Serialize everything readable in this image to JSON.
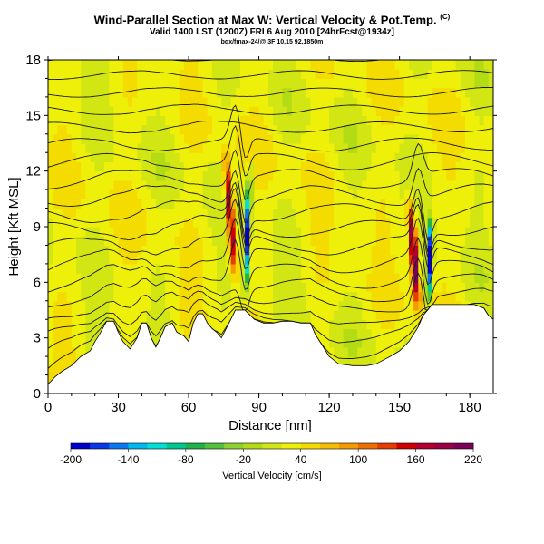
{
  "header": {
    "title": "Wind-Parallel Section at Max W: Vertical Velocity & Pot.Temp.",
    "copyright": "(C)",
    "subtitle": "Valid 1400 LST (1200Z) FRI 6 Aug 2010 [24hrFcst@1934z]",
    "source_line": "bqx/fmax-24/@ 3F 10,15 92,1850m"
  },
  "chart_data": {
    "type": "heatmap",
    "title": "Wind-Parallel Section at Max W: Vertical Velocity & Pot.Temp.",
    "xlabel": "Distance [nm]",
    "ylabel": "Height [Kft MSL]",
    "xlim": [
      0,
      190
    ],
    "ylim": [
      0,
      18
    ],
    "x_ticks": [
      0,
      30,
      60,
      90,
      120,
      150,
      180
    ],
    "y_ticks": [
      0,
      3,
      6,
      9,
      12,
      15,
      18
    ],
    "terrain": [
      [
        0,
        0.5
      ],
      [
        3,
        0.9
      ],
      [
        6,
        1.2
      ],
      [
        10,
        1.5
      ],
      [
        14,
        2.0
      ],
      [
        18,
        2.3
      ],
      [
        20,
        2.8
      ],
      [
        22,
        3.2
      ],
      [
        25,
        3.9
      ],
      [
        28,
        3.9
      ],
      [
        30,
        3.3
      ],
      [
        32,
        2.8
      ],
      [
        35,
        2.4
      ],
      [
        38,
        3.0
      ],
      [
        40,
        3.8
      ],
      [
        42,
        3.8
      ],
      [
        44,
        3.0
      ],
      [
        46,
        2.5
      ],
      [
        48,
        3.0
      ],
      [
        50,
        3.6
      ],
      [
        53,
        3.8
      ],
      [
        55,
        3.3
      ],
      [
        58,
        3.1
      ],
      [
        60,
        2.8
      ],
      [
        62,
        3.8
      ],
      [
        64,
        4.3
      ],
      [
        66,
        4.3
      ],
      [
        68,
        3.8
      ],
      [
        70,
        3.5
      ],
      [
        72,
        3.3
      ],
      [
        74,
        3.0
      ],
      [
        76,
        3.5
      ],
      [
        78,
        4.0
      ],
      [
        80,
        4.5
      ],
      [
        84,
        4.5
      ],
      [
        88,
        4.0
      ],
      [
        92,
        3.8
      ],
      [
        96,
        3.8
      ],
      [
        100,
        3.9
      ],
      [
        104,
        3.9
      ],
      [
        108,
        3.8
      ],
      [
        112,
        3.8
      ],
      [
        114,
        3.2
      ],
      [
        116,
        2.8
      ],
      [
        118,
        2.4
      ],
      [
        120,
        2.0
      ],
      [
        124,
        1.6
      ],
      [
        130,
        1.5
      ],
      [
        136,
        1.5
      ],
      [
        140,
        1.6
      ],
      [
        146,
        2.0
      ],
      [
        150,
        2.3
      ],
      [
        154,
        2.8
      ],
      [
        158,
        3.6
      ],
      [
        160,
        4.2
      ],
      [
        164,
        4.8
      ],
      [
        170,
        4.8
      ],
      [
        176,
        4.8
      ],
      [
        182,
        4.8
      ],
      [
        186,
        4.6
      ],
      [
        188,
        4.2
      ],
      [
        190,
        4.0
      ]
    ],
    "updraft_cores": [
      {
        "x": 80,
        "z_bottom": 6.0,
        "z_top": 13.2,
        "peak_w": 180
      },
      {
        "x": 158,
        "z_bottom": 4.5,
        "z_top": 10.5,
        "peak_w": 220
      }
    ],
    "downdraft_cores": [
      {
        "x": 84,
        "z_bottom": 5.0,
        "z_top": 12.5,
        "min_w": -180
      },
      {
        "x": 162,
        "z_bottom": 4.6,
        "z_top": 9.5,
        "min_w": -200
      }
    ],
    "theta_levels": 19,
    "colorbar": {
      "label": "Vertical Velocity [cm/s]",
      "tick_labels": [
        "-200",
        "-140",
        "-80",
        "-20",
        "40",
        "100",
        "160",
        "220"
      ],
      "tick_values": [
        -200,
        -140,
        -80,
        -20,
        40,
        100,
        160,
        220
      ],
      "colors": [
        "#0000cc",
        "#0a38e6",
        "#0a78f0",
        "#00b8f0",
        "#00e0d6",
        "#00c890",
        "#22b24a",
        "#52c23a",
        "#8cd232",
        "#b4dc14",
        "#d2e614",
        "#eef00a",
        "#f5dc00",
        "#f5be00",
        "#f59a00",
        "#ee6e00",
        "#e63c00",
        "#d20000",
        "#b4002d",
        "#9a0046",
        "#7a005a"
      ]
    }
  }
}
